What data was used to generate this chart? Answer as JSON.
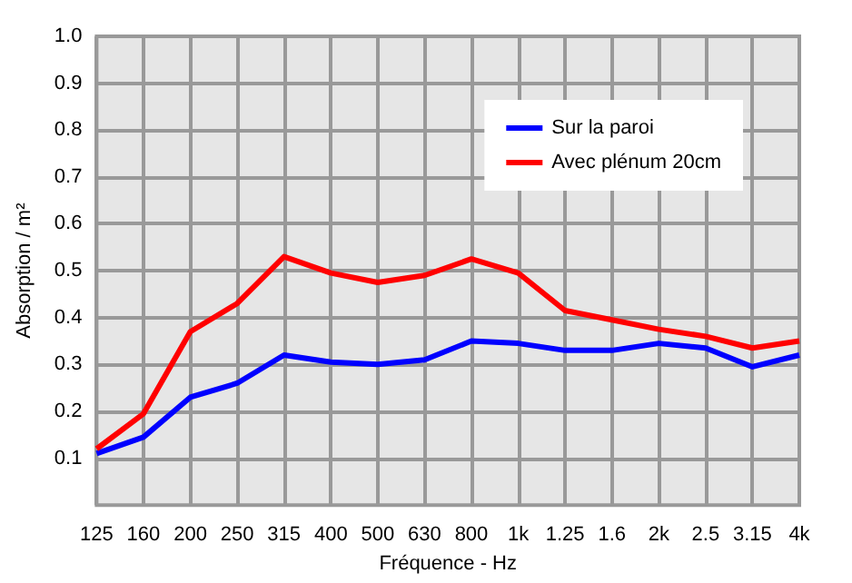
{
  "chart_data": {
    "type": "line",
    "xlabel": "Fréquence - Hz",
    "ylabel": "Absorption / m²",
    "categories": [
      "125",
      "160",
      "200",
      "250",
      "315",
      "400",
      "500",
      "630",
      "800",
      "1k",
      "1.25",
      "1.6",
      "2k",
      "2.5",
      "3.15",
      "4k"
    ],
    "series": [
      {
        "name": "Sur la paroi",
        "color": "#0000ff",
        "values": [
          0.11,
          0.145,
          0.23,
          0.26,
          0.32,
          0.305,
          0.3,
          0.31,
          0.35,
          0.345,
          0.33,
          0.33,
          0.345,
          0.335,
          0.295,
          0.32
        ]
      },
      {
        "name": "Avec plénum 20cm",
        "color": "#ff0000",
        "values": [
          0.12,
          0.195,
          0.37,
          0.43,
          0.53,
          0.495,
          0.475,
          0.49,
          0.525,
          0.495,
          0.415,
          0.395,
          0.375,
          0.36,
          0.335,
          0.35
        ]
      }
    ],
    "ylim": [
      0,
      1
    ],
    "yticks": [
      0.1,
      0.2,
      0.3,
      0.4,
      0.5,
      0.6,
      0.7,
      0.8,
      0.9,
      {
        "value": 1,
        "label": "1.0"
      }
    ],
    "grid": true,
    "legend": "top right",
    "marker": "none",
    "line_style": "solid"
  }
}
